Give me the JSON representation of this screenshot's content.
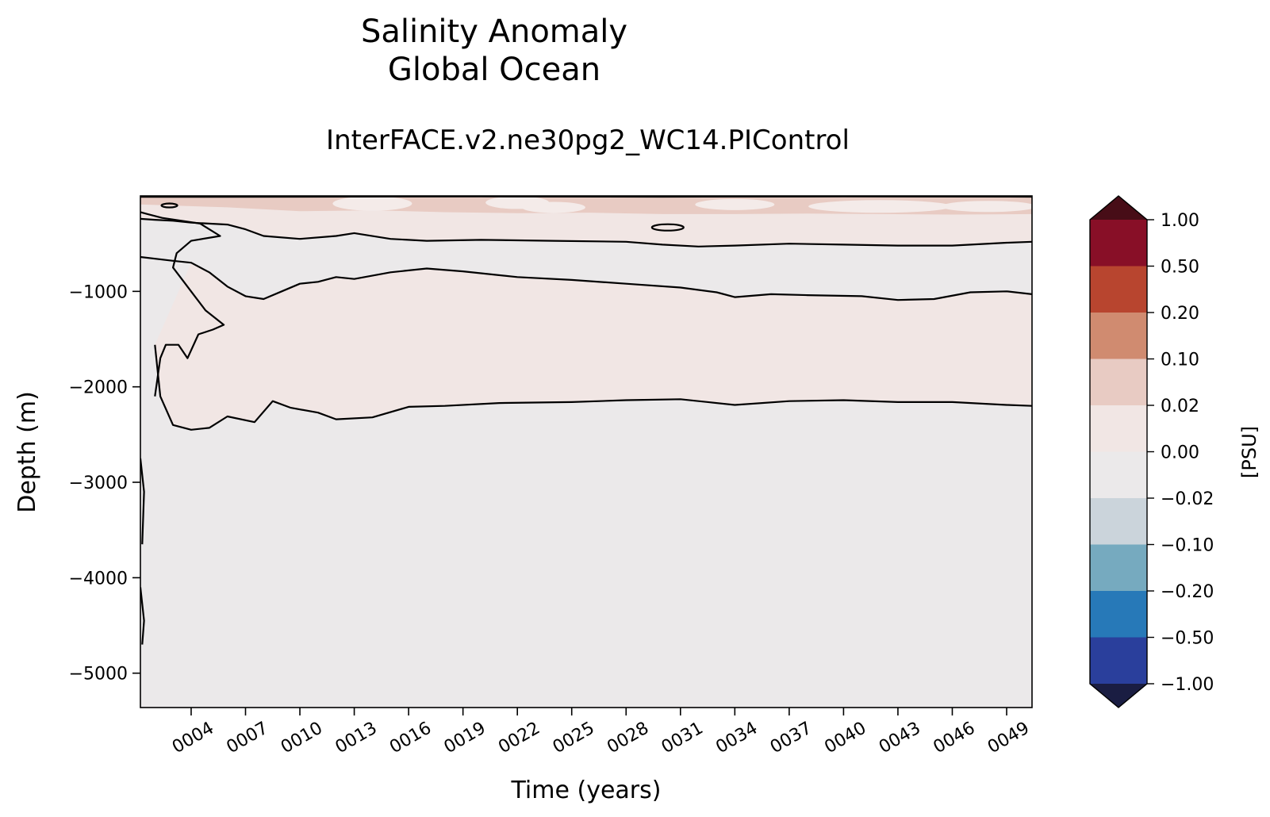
{
  "chart_data": {
    "type": "heatmap",
    "title": [
      "Salinity Anomaly",
      "Global Ocean"
    ],
    "subtitle": "InterFACE.v2.ne30pg2_WC14.PIControl",
    "xlabel": "Time (years)",
    "ylabel": "Depth (m)",
    "xlim": [
      1.2,
      50.4
    ],
    "ylim": [
      -5360,
      0
    ],
    "x_ticks": [
      "0004",
      "0007",
      "0010",
      "0013",
      "0016",
      "0019",
      "0022",
      "0025",
      "0028",
      "0031",
      "0034",
      "0037",
      "0040",
      "0043",
      "0046",
      "0049"
    ],
    "y_ticks": [
      -1000,
      -2000,
      -3000,
      -4000,
      -5000
    ],
    "y_tick_labels": [
      "−1000",
      "−2000",
      "−3000",
      "−4000",
      "−5000"
    ],
    "colorbar": {
      "label": "[PSU]",
      "levels": [
        -1.0,
        -0.5,
        -0.2,
        -0.1,
        -0.02,
        0.0,
        0.02,
        0.1,
        0.2,
        0.5,
        1.0
      ],
      "tick_labels": [
        "−1.00",
        "−0.50",
        "−0.20",
        "−0.10",
        "−0.02",
        "0.00",
        "0.02",
        "0.10",
        "0.20",
        "0.50",
        "1.00"
      ],
      "colors": [
        "#2a3f9c",
        "#2779b8",
        "#76aabf",
        "#cbd4db",
        "#ebe9ea",
        "#f1e6e4",
        "#e8cbc3",
        "#d08b70",
        "#b8452f",
        "#880f27"
      ],
      "under_color": "#1a1d42",
      "over_color": "#470d17",
      "extend": "both"
    },
    "filled_regions": [
      {
        "range": [
          -0.02,
          0.0
        ],
        "description_level": "background"
      },
      {
        "range": [
          0.0,
          0.02
        ],
        "depth_band": "upper ~ -200 to -500 m and ~ -900 to -2200 m"
      },
      {
        "range": [
          0.02,
          0.1
        ],
        "depth_band": "surface 0 to ~ -250 m"
      }
    ],
    "contour_lines": {
      "upper_boundary": [
        [
          1.2,
          -240
        ],
        [
          2,
          -250
        ],
        [
          3,
          -260
        ],
        [
          4,
          -280
        ],
        [
          6,
          -300
        ],
        [
          7,
          -350
        ],
        [
          8,
          -420
        ],
        [
          10,
          -450
        ],
        [
          12,
          -420
        ],
        [
          13,
          -390
        ],
        [
          15,
          -450
        ],
        [
          17,
          -470
        ],
        [
          20,
          -460
        ],
        [
          24,
          -470
        ],
        [
          28,
          -480
        ],
        [
          30,
          -510
        ],
        [
          32,
          -530
        ],
        [
          34,
          -520
        ],
        [
          37,
          -500
        ],
        [
          40,
          -510
        ],
        [
          43,
          -520
        ],
        [
          46,
          -520
        ],
        [
          49,
          -490
        ],
        [
          50.4,
          -480
        ]
      ],
      "mid_boundary": [
        [
          1.2,
          -640
        ],
        [
          3,
          -680
        ],
        [
          4,
          -700
        ],
        [
          5,
          -800
        ],
        [
          6,
          -950
        ],
        [
          7,
          -1050
        ],
        [
          8,
          -1080
        ],
        [
          9,
          -1000
        ],
        [
          10,
          -920
        ],
        [
          11,
          -900
        ],
        [
          12,
          -850
        ],
        [
          13,
          -870
        ],
        [
          15,
          -800
        ],
        [
          17,
          -760
        ],
        [
          19,
          -790
        ],
        [
          22,
          -850
        ],
        [
          25,
          -880
        ],
        [
          28,
          -920
        ],
        [
          31,
          -960
        ],
        [
          33,
          -1010
        ],
        [
          34,
          -1060
        ],
        [
          36,
          -1030
        ],
        [
          38,
          -1040
        ],
        [
          41,
          -1050
        ],
        [
          43,
          -1090
        ],
        [
          45,
          -1080
        ],
        [
          47,
          -1010
        ],
        [
          49,
          -1000
        ],
        [
          50.4,
          -1030
        ]
      ],
      "deep_boundary": [
        [
          2,
          -1560
        ],
        [
          2.3,
          -2100
        ],
        [
          3,
          -2400
        ],
        [
          4,
          -2450
        ],
        [
          5,
          -2430
        ],
        [
          6,
          -2310
        ],
        [
          7.5,
          -2370
        ],
        [
          8.5,
          -2150
        ],
        [
          9.5,
          -2220
        ],
        [
          11,
          -2270
        ],
        [
          12,
          -2340
        ],
        [
          14,
          -2320
        ],
        [
          16,
          -2210
        ],
        [
          18,
          -2200
        ],
        [
          21,
          -2170
        ],
        [
          25,
          -2160
        ],
        [
          28,
          -2140
        ],
        [
          31,
          -2130
        ],
        [
          34,
          -2190
        ],
        [
          37,
          -2150
        ],
        [
          40,
          -2140
        ],
        [
          43,
          -2160
        ],
        [
          46,
          -2160
        ],
        [
          49,
          -2190
        ],
        [
          50.4,
          -2200
        ]
      ]
    }
  }
}
